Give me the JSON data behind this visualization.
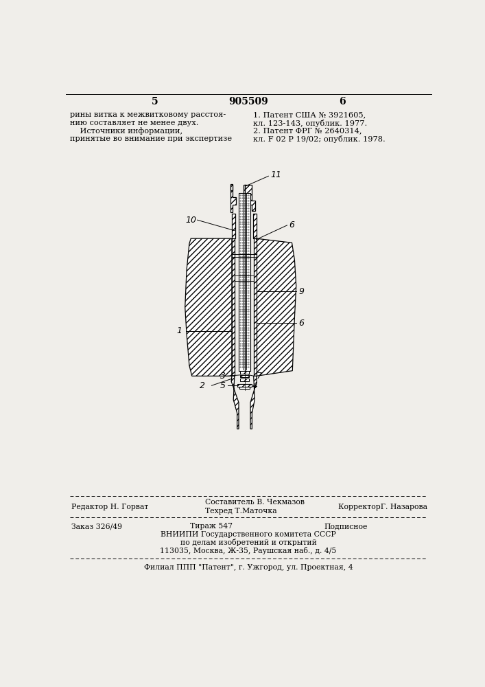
{
  "bg_color": "#f0eeea",
  "top_left_number": "5",
  "top_center_number": "905509",
  "top_right_number": "6",
  "top_left_text": [
    "рины витка к межвитковому расстоя-",
    "нию составляет не менее двух.",
    "    Источники информации,",
    "принятые во внимание при экспертизе"
  ],
  "top_right_text": [
    "1. Патент США № 3921605,",
    "кл. 123-143, опублик. 1977.",
    "2. Патент ФРГ № 2640314,",
    "кл. F 02 P 19/02; опублик. 1978."
  ],
  "bottom_row1_left": "Редактор Н. Горват",
  "bottom_row1_center_top": "Составитель В. Чекмазов",
  "bottom_row1_center_bot": "Техред Т.Маточка",
  "bottom_row1_right": "КорректорГ. Назарова",
  "bottom_row2_left": "Заказ 326/49",
  "bottom_row2_center1": "Тираж 547",
  "bottom_row2_center2": "Подписное",
  "bottom_row2_center3": "ВНИИПИ Государственного комитета СССР",
  "bottom_row2_center4": "по делам изобретений и открытий",
  "bottom_row2_center5": "113035, Москва, Ж-35, Раушская наб., д. 4/5",
  "bottom_last": "Филиал ППП \"Патент\", г. Ужгород, ул. Проектная, 4"
}
